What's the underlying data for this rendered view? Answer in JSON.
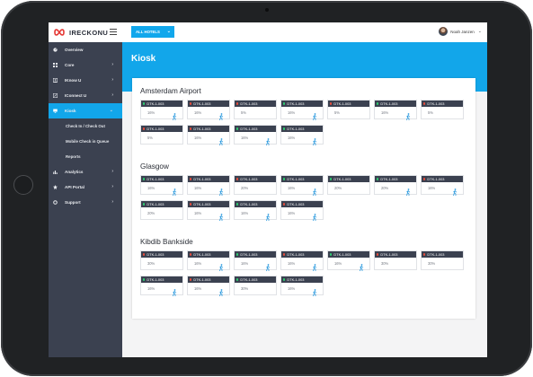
{
  "app": {
    "logo_text": "IRECKONU"
  },
  "header": {
    "hotel_selector": "ALL HOTELS",
    "user_name": "Noah Janzen"
  },
  "sidebar": {
    "items": [
      {
        "label": "Overview",
        "icon": "gauge-icon",
        "arrow": ""
      },
      {
        "label": "Core",
        "icon": "grid-icon",
        "arrow": "›"
      },
      {
        "label": "IKnow U",
        "icon": "user-icon",
        "arrow": "›"
      },
      {
        "label": "IConnect U",
        "icon": "link-icon",
        "arrow": "›"
      },
      {
        "label": "Kiosk",
        "icon": "monitor-icon",
        "arrow": "⌄",
        "active": true
      },
      {
        "label": "Analytics",
        "icon": "bar-chart-icon",
        "arrow": "›"
      },
      {
        "label": "API Portal",
        "icon": "plug-icon",
        "arrow": "›"
      },
      {
        "label": "Support",
        "icon": "lifebuoy-icon",
        "arrow": "›"
      }
    ],
    "kiosk_sub": [
      "Check In / Check Out",
      "Mobile Check in Queue",
      "Reports"
    ]
  },
  "page": {
    "title": "Kiosk"
  },
  "colors": {
    "accent": "#12a6ea",
    "sidebar": "#3b4150",
    "status_green": "#2ecc71",
    "status_red": "#e74c3c"
  },
  "sections": [
    {
      "name": "Amsterdam Airport",
      "tiles": [
        {
          "id": "DTK-1-003",
          "status": "green",
          "pct": "16%",
          "walk": true
        },
        {
          "id": "DTK-1-003",
          "status": "red",
          "pct": "16%",
          "walk": true
        },
        {
          "id": "DTK-1-003",
          "status": "red",
          "pct": "5%",
          "walk": false
        },
        {
          "id": "DTK-1-003",
          "status": "green",
          "pct": "16%",
          "walk": true
        },
        {
          "id": "DTK-1-003",
          "status": "red",
          "pct": "5%",
          "walk": false
        },
        {
          "id": "DTK-1-003",
          "status": "green",
          "pct": "16%",
          "walk": true
        },
        {
          "id": "DTK-1-003",
          "status": "red",
          "pct": "5%",
          "walk": false
        },
        {
          "id": "DTK-1-003",
          "status": "red",
          "pct": "5%",
          "walk": false
        },
        {
          "id": "DTK-1-003",
          "status": "red",
          "pct": "16%",
          "walk": true
        },
        {
          "id": "DTK-1-003",
          "status": "green",
          "pct": "16%",
          "walk": true
        },
        {
          "id": "DTK-1-003",
          "status": "green",
          "pct": "16%",
          "walk": true
        }
      ]
    },
    {
      "name": "Glasgow",
      "tiles": [
        {
          "id": "DTK-1-003",
          "status": "green",
          "pct": "16%",
          "walk": true
        },
        {
          "id": "DTK-1-003",
          "status": "red",
          "pct": "16%",
          "walk": true
        },
        {
          "id": "DTK-1-003",
          "status": "red",
          "pct": "20%",
          "walk": false
        },
        {
          "id": "DTK-1-003",
          "status": "green",
          "pct": "16%",
          "walk": true
        },
        {
          "id": "DTK-1-003",
          "status": "green",
          "pct": "20%",
          "walk": false
        },
        {
          "id": "DTK-1-003",
          "status": "green",
          "pct": "20%",
          "walk": true
        },
        {
          "id": "DTK-1-003",
          "status": "red",
          "pct": "16%",
          "walk": true
        },
        {
          "id": "DTK-1-003",
          "status": "green",
          "pct": "20%",
          "walk": false
        },
        {
          "id": "DTK-1-003",
          "status": "red",
          "pct": "16%",
          "walk": true
        },
        {
          "id": "DTK-1-003",
          "status": "green",
          "pct": "16%",
          "walk": true
        },
        {
          "id": "DTK-1-003",
          "status": "red",
          "pct": "16%",
          "walk": true
        }
      ]
    },
    {
      "name": "Kibdib Bankside",
      "tiles": [
        {
          "id": "DTK-1-003",
          "status": "red",
          "pct": "30%",
          "walk": false
        },
        {
          "id": "DTK-1-003",
          "status": "red",
          "pct": "16%",
          "walk": true
        },
        {
          "id": "DTK-1-003",
          "status": "green",
          "pct": "16%",
          "walk": true
        },
        {
          "id": "DTK-1-003",
          "status": "red",
          "pct": "16%",
          "walk": true
        },
        {
          "id": "DTK-1-003",
          "status": "green",
          "pct": "16%",
          "walk": true
        },
        {
          "id": "DTK-1-003",
          "status": "red",
          "pct": "30%",
          "walk": false
        },
        {
          "id": "DTK-1-003",
          "status": "red",
          "pct": "30%",
          "walk": false
        },
        {
          "id": "DTK-1-003",
          "status": "green",
          "pct": "16%",
          "walk": true
        },
        {
          "id": "DTK-1-003",
          "status": "red",
          "pct": "16%",
          "walk": true
        },
        {
          "id": "DTK-1-003",
          "status": "green",
          "pct": "30%",
          "walk": false
        },
        {
          "id": "DTK-1-003",
          "status": "green",
          "pct": "16%",
          "walk": true
        }
      ]
    }
  ]
}
